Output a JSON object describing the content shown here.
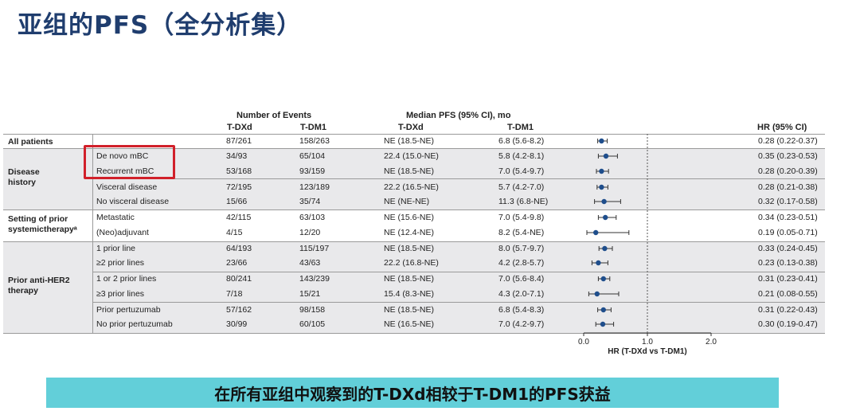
{
  "title": "亚组的PFS（全分析集）",
  "headers": {
    "events_group": "Number of Events",
    "pfs_group": "Median PFS (95% CI), mo",
    "events_tdxd": "T-DXd",
    "events_tdm1": "T-DM1",
    "pfs_tdxd": "T-DXd",
    "pfs_tdm1": "T-DM1",
    "hr": "HR (95% CI)"
  },
  "groups": {
    "all_patients": "All patients",
    "disease_history": "Disease history",
    "setting_prior": "Setting of prior systemictherapyᵃ",
    "prior_anti_her2": "Prior anti-HER2 therapy"
  },
  "rows": [
    {
      "label": "",
      "ev_tdxd": "87/261",
      "ev_tdm1": "158/263",
      "pfs_tdxd": "NE (18.5-NE)",
      "pfs_tdm1": "6.8 (5.6-8.2)",
      "hr_text": "0.28 (0.22-0.37)"
    },
    {
      "label": "De novo mBC",
      "ev_tdxd": "34/93",
      "ev_tdm1": "65/104",
      "pfs_tdxd": "22.4 (15.0-NE)",
      "pfs_tdm1": "5.8 (4.2-8.1)",
      "hr_text": "0.35 (0.23-0.53)"
    },
    {
      "label": "Recurrent mBC",
      "ev_tdxd": "53/168",
      "ev_tdm1": "93/159",
      "pfs_tdxd": "NE (18.5-NE)",
      "pfs_tdm1": "7.0 (5.4-9.7)",
      "hr_text": "0.28 (0.20-0.39)"
    },
    {
      "label": "Visceral disease",
      "ev_tdxd": "72/195",
      "ev_tdm1": "123/189",
      "pfs_tdxd": "22.2 (16.5-NE)",
      "pfs_tdm1": "5.7 (4.2-7.0)",
      "hr_text": "0.28 (0.21-0.38)"
    },
    {
      "label": "No visceral disease",
      "ev_tdxd": "15/66",
      "ev_tdm1": "35/74",
      "pfs_tdxd": "NE (NE-NE)",
      "pfs_tdm1": "11.3 (6.8-NE)",
      "hr_text": "0.32 (0.17-0.58)"
    },
    {
      "label": "Metastatic",
      "ev_tdxd": "42/115",
      "ev_tdm1": "63/103",
      "pfs_tdxd": "NE (15.6-NE)",
      "pfs_tdm1": "7.0 (5.4-9.8)",
      "hr_text": "0.34 (0.23-0.51)"
    },
    {
      "label": "(Neo)adjuvant",
      "ev_tdxd": "4/15",
      "ev_tdm1": "12/20",
      "pfs_tdxd": "NE (12.4-NE)",
      "pfs_tdm1": "8.2 (5.4-NE)",
      "hr_text": "0.19 (0.05-0.71)"
    },
    {
      "label": "1 prior line",
      "ev_tdxd": "64/193",
      "ev_tdm1": "115/197",
      "pfs_tdxd": "NE (18.5-NE)",
      "pfs_tdm1": "8.0 (5.7-9.7)",
      "hr_text": "0.33 (0.24-0.45)"
    },
    {
      "label": "≥2 prior lines",
      "ev_tdxd": "23/66",
      "ev_tdm1": "43/63",
      "pfs_tdxd": "22.2 (16.8-NE)",
      "pfs_tdm1": "4.2 (2.8-5.7)",
      "hr_text": "0.23 (0.13-0.38)"
    },
    {
      "label": "1 or 2 prior lines",
      "ev_tdxd": "80/241",
      "ev_tdm1": "143/239",
      "pfs_tdxd": "NE (18.5-NE)",
      "pfs_tdm1": "7.0 (5.6-8.4)",
      "hr_text": "0.31 (0.23-0.41)"
    },
    {
      "label": "≥3 prior lines",
      "ev_tdxd": "7/18",
      "ev_tdm1": "15/21",
      "pfs_tdxd": "15.4 (8.3-NE)",
      "pfs_tdm1": "4.3 (2.0-7.1)",
      "hr_text": "0.21 (0.08-0.55)"
    },
    {
      "label": "Prior pertuzumab",
      "ev_tdxd": "57/162",
      "ev_tdm1": "98/158",
      "pfs_tdxd": "NE (18.5-NE)",
      "pfs_tdm1": "6.8 (5.4-8.3)",
      "hr_text": "0.31 (0.22-0.43)"
    },
    {
      "label": "No prior pertuzumab",
      "ev_tdxd": "30/99",
      "ev_tdm1": "60/105",
      "pfs_tdxd": "NE (16.5-NE)",
      "pfs_tdm1": "7.0 (4.2-9.7)",
      "hr_text": "0.30 (0.19-0.47)"
    }
  ],
  "forest": {
    "hr": [
      0.28,
      0.35,
      0.28,
      0.28,
      0.32,
      0.34,
      0.19,
      0.33,
      0.23,
      0.31,
      0.21,
      0.31,
      0.3
    ],
    "lo": [
      0.22,
      0.23,
      0.2,
      0.21,
      0.17,
      0.23,
      0.05,
      0.24,
      0.13,
      0.23,
      0.08,
      0.22,
      0.19
    ],
    "hi": [
      0.37,
      0.53,
      0.39,
      0.38,
      0.58,
      0.51,
      0.71,
      0.45,
      0.38,
      0.41,
      0.55,
      0.43,
      0.47
    ],
    "ticks": [
      "0.0",
      "1.0",
      "2.0"
    ],
    "xlabel": "HR (T-DXd vs T-DM1)",
    "marker_color": "#1f4e8c"
  },
  "banner": "在所有亚组中观察到的T-DXd相较于T-DM1的PFS获益"
}
